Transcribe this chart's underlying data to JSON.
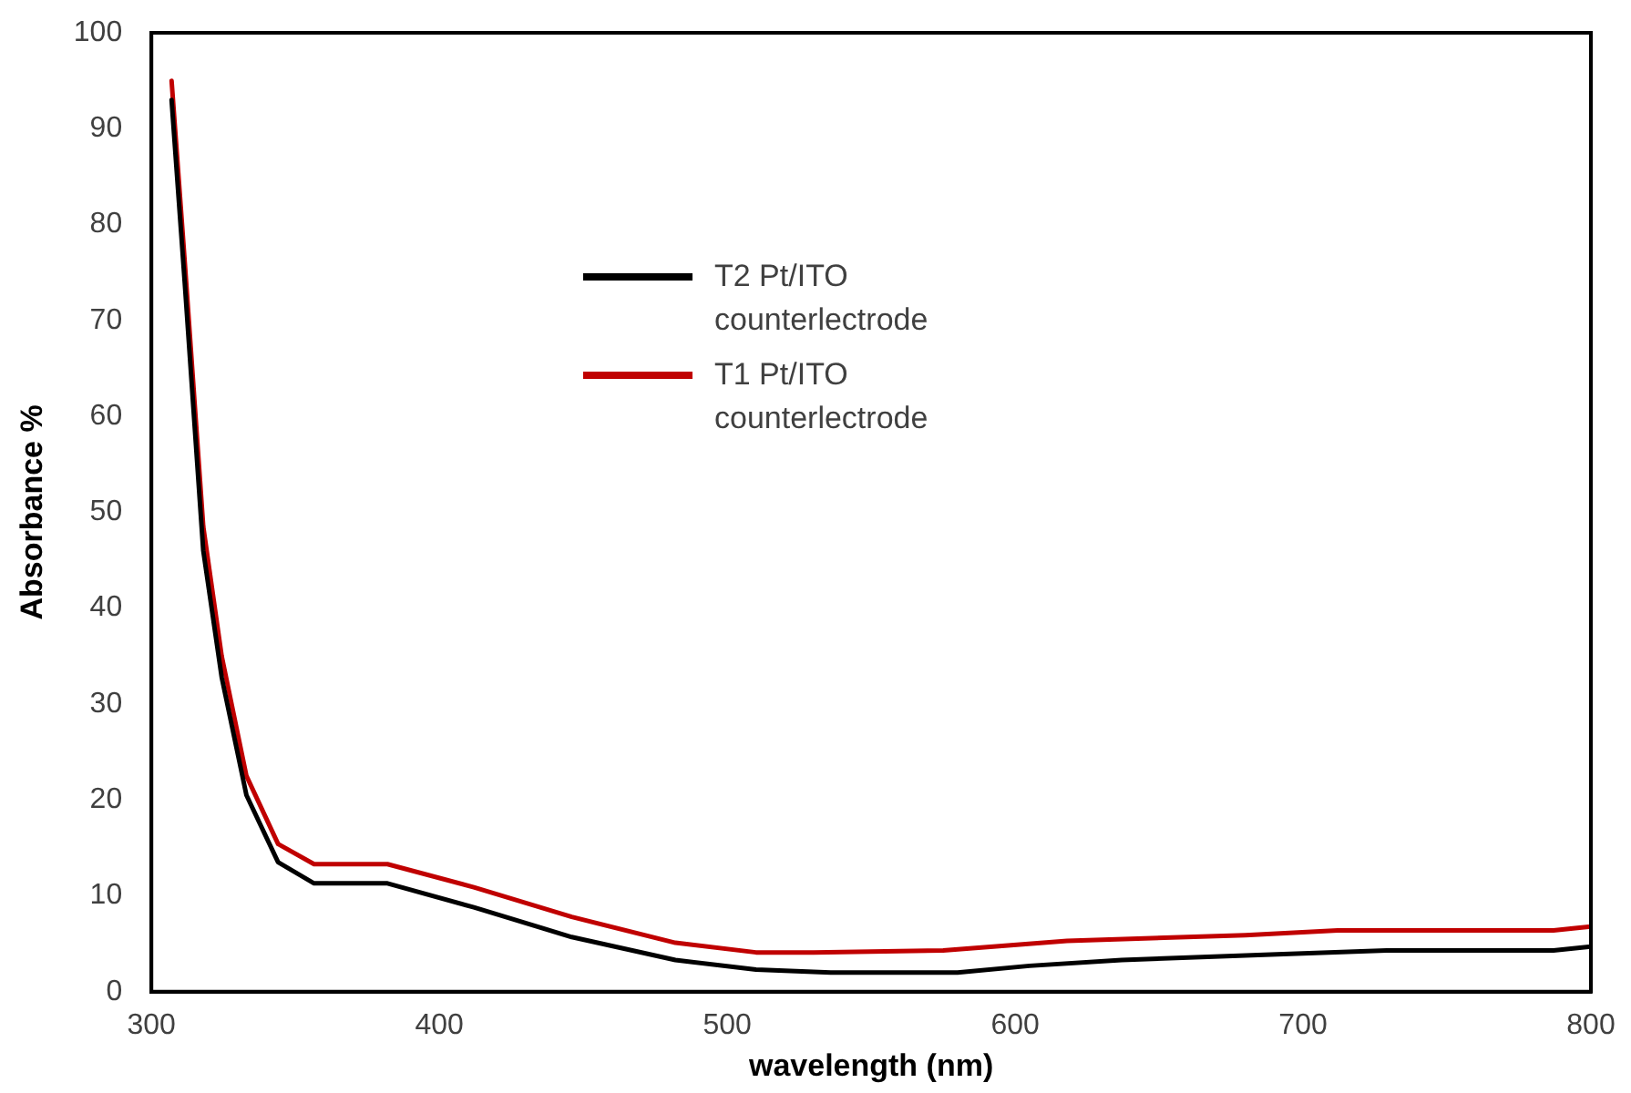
{
  "chart_data": {
    "type": "line",
    "xlabel": "wavelength (nm)",
    "ylabel": "Absorbance %",
    "xlim": [
      300,
      800
    ],
    "ylim": [
      0,
      100
    ],
    "xticks": [
      300,
      400,
      500,
      600,
      700,
      800
    ],
    "yticks": [
      0,
      10,
      20,
      30,
      40,
      50,
      60,
      70,
      80,
      90,
      100
    ],
    "grid": false,
    "legend": "center",
    "marker": "none",
    "series": [
      {
        "name": "T2  Pt/ITO counterlectrode",
        "color": "#000000",
        "x": [
          307,
          311.6,
          318,
          324.4,
          333,
          344,
          356.5,
          382,
          412,
          446,
          482,
          510,
          536,
          580,
          605,
          637,
          691,
          729,
          787,
          800
        ],
        "values": [
          93,
          73.8,
          46,
          32.8,
          20.5,
          13.5,
          11.3,
          11.3,
          8.8,
          5.7,
          3.3,
          2.3,
          2,
          2,
          2.7,
          3.3,
          3.9,
          4.3,
          4.3,
          4.7
        ]
      },
      {
        "name": "T1    Pt/ITO counterlectrode",
        "color": "#c00000",
        "x": [
          307,
          311.6,
          318,
          324.4,
          333,
          344,
          356.5,
          382,
          412,
          446,
          482,
          510,
          530,
          575,
          618,
          680,
          712,
          787,
          800
        ],
        "values": [
          95,
          76,
          48.5,
          35,
          22.5,
          15.4,
          13.3,
          13.3,
          10.9,
          7.8,
          5.1,
          4.1,
          4.1,
          4.3,
          5.3,
          5.9,
          6.4,
          6.4,
          6.8
        ]
      }
    ]
  }
}
